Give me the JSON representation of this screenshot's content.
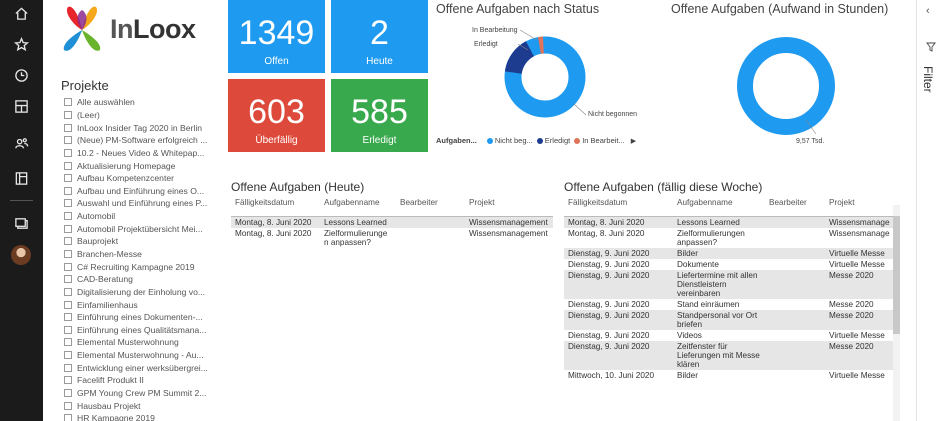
{
  "nav": {
    "items": [
      "home-icon",
      "star-icon",
      "clock-icon",
      "apps-icon",
      "shared-icon",
      "workspaces-icon",
      "datasets-icon",
      "profile-avatar"
    ]
  },
  "logo": {
    "text_in": "In",
    "text_loox": "Loox"
  },
  "projects": {
    "title": "Projekte",
    "items": [
      "Alle auswählen",
      "(Leer)",
      "InLoox Insider Tag 2020 in Berlin",
      "(Neue) PM-Software erfolgreich ...",
      "10.2 - Neues Video & Whitepap...",
      "Aktualisierung Homepage",
      "Aufbau Kompetenzcenter",
      "Aufbau und Einführung eines O...",
      "Auswahl und Einführung eines P...",
      "Automobil",
      "Automobil Projektübersicht Mei...",
      "Bauprojekt",
      "Branchen-Messe",
      "C# Recruiting Kampagne 2019",
      "CAD-Beratung",
      "Digitalisierung der Einholung vo...",
      "Einfamilienhaus",
      "Einführung eines Dokumenten-...",
      "Einführung eines Qualitätsmana...",
      "Elemental Musterwohnung",
      "Elemental Musterwohnung - Au...",
      "Entwicklung einer werksübergrei...",
      "Facelift Produkt II",
      "GPM Young Crew PM Summit 2...",
      "Hausbau Projekt",
      "HR Kampagne 2019"
    ]
  },
  "kpis": [
    {
      "value": "1349",
      "label": "Offen",
      "color": "#1e9af0"
    },
    {
      "value": "2",
      "label": "Heute",
      "color": "#1e9af0"
    },
    {
      "value": "603",
      "label": "Überfällig",
      "color": "#dd4a3c"
    },
    {
      "value": "585",
      "label": "Erledigt",
      "color": "#39a94d"
    }
  ],
  "status_chart": {
    "title": "Offene Aufgaben nach Status",
    "labels": {
      "in_bearbeitung": "In Bearbeitung",
      "erledigt": "Erledigt",
      "nicht_begonnen": "Nicht begonnen"
    },
    "legend_title": "Aufgaben...",
    "legend": [
      {
        "name": "Nicht beg...",
        "color": "#1e9af0"
      },
      {
        "name": "Erledigt",
        "color": "#1d3c8f"
      },
      {
        "name": "In Bearbeit...",
        "color": "#e0735a"
      }
    ],
    "legend_more": "▶"
  },
  "effort_chart": {
    "title": "Offene Aufgaben (Aufwand in Stunden)",
    "value_label": "9,57 Tsd."
  },
  "today_table": {
    "title": "Offene Aufgaben (Heute)",
    "headers": [
      "Fälligkeitsdatum",
      "Aufgabenname",
      "Bearbeiter",
      "Projekt"
    ],
    "rows": [
      [
        "Montag, 8. Juni 2020",
        "Lessons Learned",
        "",
        "Wissensmanagement"
      ],
      [
        "Montag, 8. Juni 2020",
        "Zielformulierunge n anpassen?",
        "",
        "Wissensmanagement"
      ]
    ]
  },
  "week_table": {
    "title": "Offene Aufgaben (fällig diese Woche)",
    "headers": [
      "Fälligkeitsdatum",
      "Aufgabenname",
      "Bearbeiter",
      "Projekt"
    ],
    "rows": [
      [
        "Montag, 8. Juni 2020",
        "Lessons Learned",
        "",
        "Wissensmanage"
      ],
      [
        "Montag, 8. Juni 2020",
        "Zielformulierungen anpassen?",
        "",
        "Wissensmanage"
      ],
      [
        "Dienstag, 9. Juni 2020",
        "Bilder",
        "",
        "Virtuelle Messe"
      ],
      [
        "Dienstag, 9. Juni 2020",
        "Dokumente",
        "",
        "Virtuelle Messe"
      ],
      [
        "Dienstag, 9. Juni 2020",
        "Liefertermine mit allen Dienstleistern vereinbaren",
        "",
        "Messe 2020"
      ],
      [
        "Dienstag, 9. Juni 2020",
        "Stand einräumen",
        "",
        "Messe 2020"
      ],
      [
        "Dienstag, 9. Juni 2020",
        "Standpersonal vor Ort briefen",
        "",
        "Messe 2020"
      ],
      [
        "Dienstag, 9. Juni 2020",
        "Videos",
        "",
        "Virtuelle Messe"
      ],
      [
        "Dienstag, 9. Juni 2020",
        "Zeitfenster für Lieferungen mit Messe klären",
        "",
        "Messe 2020"
      ],
      [
        "Mittwoch, 10. Juni 2020",
        "Bilder",
        "",
        "Virtuelle Messe"
      ]
    ]
  },
  "filter_pane": {
    "label": "Filter",
    "collapse": "‹"
  }
}
